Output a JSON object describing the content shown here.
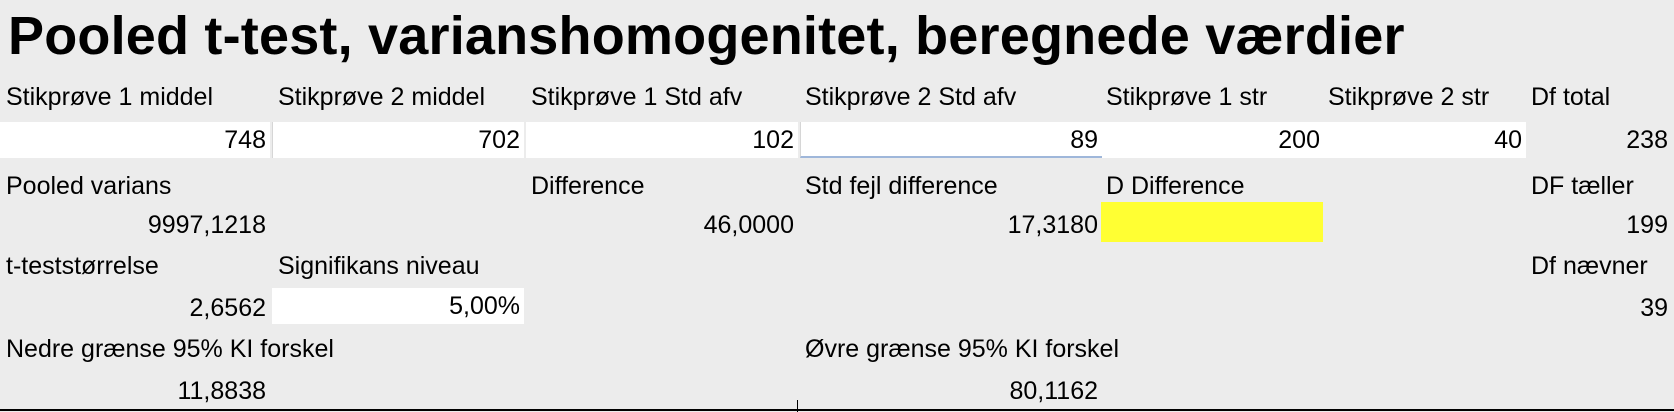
{
  "title": "Pooled t-test, varianshomogenitet, beregnede værdier",
  "inputs": {
    "s1_mean": {
      "label": "Stikprøve 1 middel",
      "value": "748"
    },
    "s2_mean": {
      "label": "Stikprøve 2 middel",
      "value": "702"
    },
    "s1_sd": {
      "label": "Stikprøve 1 Std afv",
      "value": "102"
    },
    "s2_sd": {
      "label": "Stikprøve 2 Std afv",
      "value": "89"
    },
    "s1_n": {
      "label": "Stikprøve 1 str",
      "value": "200"
    },
    "s2_n": {
      "label": "Stikprøve 2 str",
      "value": "40"
    },
    "df_total": {
      "label": "Df total",
      "value": "238"
    }
  },
  "calc": {
    "pooled_var": {
      "label": "Pooled varians",
      "value": "9997,1218"
    },
    "difference": {
      "label": "Difference",
      "value": "46,0000"
    },
    "se_diff": {
      "label": "Std fejl difference",
      "value": "17,3180"
    },
    "d_diff": {
      "label": "D Difference",
      "value": ""
    },
    "df_num": {
      "label": "DF tæller",
      "value": "199"
    },
    "t_stat": {
      "label": "t-teststørrelse",
      "value": "2,6562"
    },
    "sig_level": {
      "label": "Signifikans niveau",
      "value": "5,00%"
    },
    "df_den": {
      "label": "Df nævner",
      "value": "39"
    },
    "ci_low": {
      "label": "Nedre grænse 95% KI forskel",
      "value": "11,8838"
    },
    "ci_high": {
      "label": "Øvre grænse 95% KI forskel",
      "value": "80,1162"
    }
  },
  "colors": {
    "highlight": "#ffff33",
    "background": "#ececec"
  }
}
